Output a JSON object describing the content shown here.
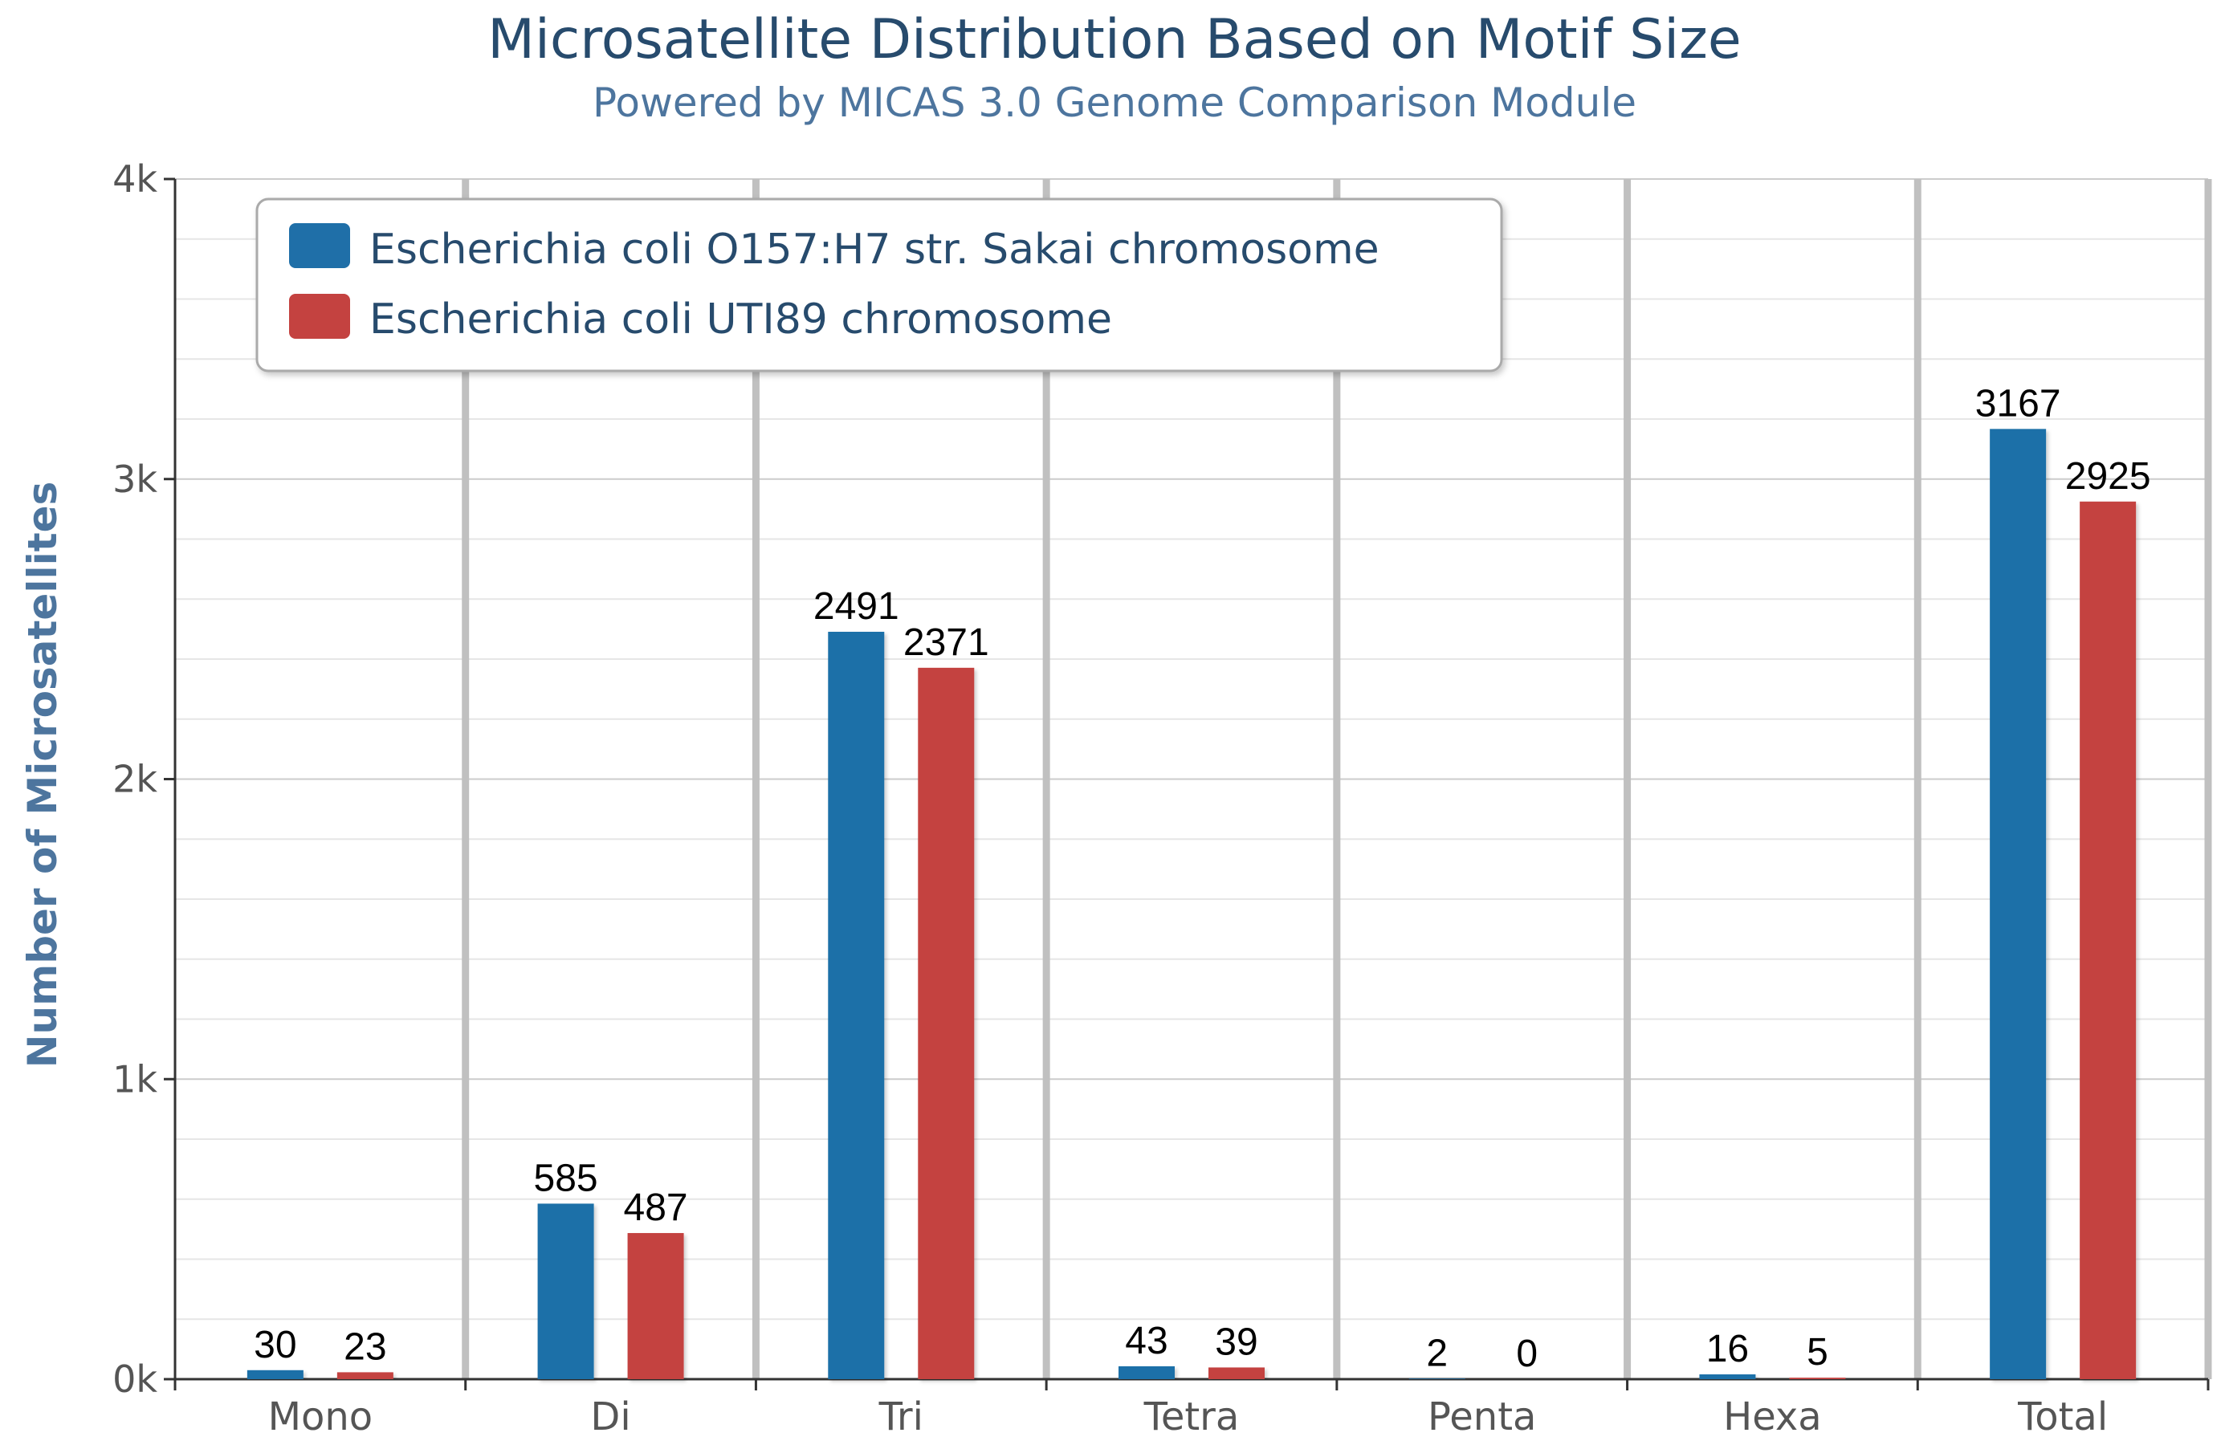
{
  "chart_data": {
    "type": "bar",
    "title": "Microsatellite Distribution Based on Motif Size",
    "subtitle": "Powered by MICAS 3.0 Genome Comparison Module",
    "xlabel": "",
    "ylabel": "Number of Microsatellites",
    "ylim": [
      0,
      4000
    ],
    "y_ticks": [
      0,
      1000,
      2000,
      3000,
      4000
    ],
    "y_tick_labels": [
      "0k",
      "1k",
      "2k",
      "3k",
      "4k"
    ],
    "grid": true,
    "legend_position": "top-left",
    "categories": [
      "Mono",
      "Di",
      "Tri",
      "Tetra",
      "Penta",
      "Hexa",
      "Total"
    ],
    "series": [
      {
        "name": "Escherichia coli O157:H7 str. Sakai chromosome",
        "color": "#1f6fa8",
        "values": [
          30,
          585,
          2491,
          43,
          2,
          16,
          3167
        ],
        "labels": [
          "30",
          "585",
          "2491",
          "43",
          "2",
          "16",
          "3167"
        ]
      },
      {
        "name": "Escherichia coli UTI89 chromosome",
        "color": "#c44240",
        "values": [
          23,
          487,
          2371,
          39,
          0,
          5,
          2925
        ],
        "labels": [
          "23",
          "487",
          "2371",
          "39",
          "0",
          "5",
          "2925"
        ]
      }
    ]
  }
}
